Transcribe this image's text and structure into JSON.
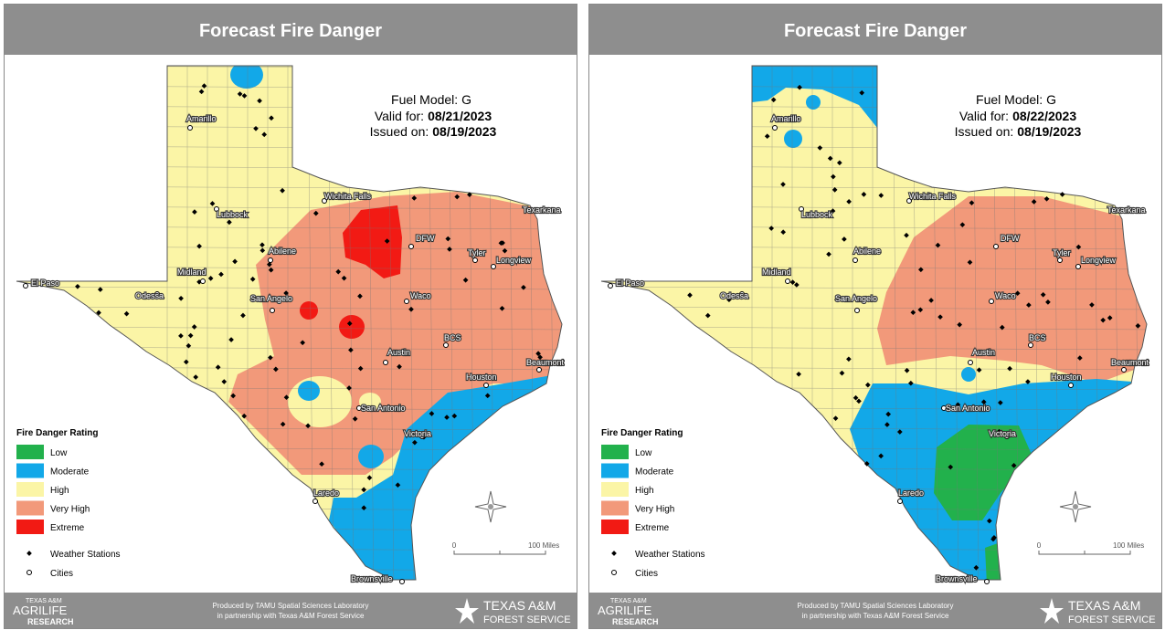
{
  "panels": [
    {
      "title": "Forecast Fire Danger",
      "fuel_model": "Fuel Model: G",
      "valid_label": "Valid for:",
      "valid_date": "08/21/2023",
      "issued_label": "Issued on:",
      "issued_date": "08/19/2023",
      "cities": [
        "El Paso",
        "Odessa",
        "Midland",
        "Lubbock",
        "Amarillo",
        "Wichita Falls",
        "Abilene",
        "San Angelo",
        "DFW",
        "Tyler",
        "Longview",
        "Texarkana",
        "Waco",
        "Austin",
        "BCS",
        "Houston",
        "Beaumont",
        "San Antonio",
        "Victoria",
        "Laredo",
        "Brownsville"
      ],
      "legend": {
        "title": "Fire Danger Rating",
        "items": [
          {
            "label": "Low",
            "color": "#22b14c"
          },
          {
            "label": "Moderate",
            "color": "#12a8e8"
          },
          {
            "label": "High",
            "color": "#fbf5a6"
          },
          {
            "label": "Very High",
            "color": "#f2997a"
          },
          {
            "label": "Extreme",
            "color": "#f21a14"
          }
        ],
        "stations": "Weather Stations",
        "cities": "Cities"
      },
      "scale": {
        "start": "0",
        "end": "100 Miles"
      },
      "footer": {
        "line1": "Produced by TAMU Spatial Sciences Laboratory",
        "line2": "in partnership with Texas A&M Forest Service",
        "left_logo": [
          "TEXAS A&M",
          "AGRILIFE",
          "RESEARCH"
        ],
        "right_logo": [
          "TEXAS A&M",
          "FOREST SERVICE"
        ]
      }
    },
    {
      "title": "Forecast Fire Danger",
      "fuel_model": "Fuel Model: G",
      "valid_label": "Valid for:",
      "valid_date": "08/22/2023",
      "issued_label": "Issued on:",
      "issued_date": "08/19/2023",
      "cities": [
        "El Paso",
        "Odessa",
        "Midland",
        "Lubbock",
        "Amarillo",
        "Wichita Falls",
        "Abilene",
        "San Angelo",
        "DFW",
        "Tyler",
        "Longview",
        "Texarkana",
        "Waco",
        "Austin",
        "BCS",
        "Houston",
        "Beaumont",
        "San Antonio",
        "Victoria",
        "Laredo",
        "Brownsville"
      ],
      "legend": {
        "title": "Fire Danger Rating",
        "items": [
          {
            "label": "Low",
            "color": "#22b14c"
          },
          {
            "label": "Moderate",
            "color": "#12a8e8"
          },
          {
            "label": "High",
            "color": "#fbf5a6"
          },
          {
            "label": "Very High",
            "color": "#f2997a"
          },
          {
            "label": "Extreme",
            "color": "#f21a14"
          }
        ],
        "stations": "Weather Stations",
        "cities": "Cities"
      },
      "scale": {
        "start": "0",
        "end": "100 Miles"
      },
      "footer": {
        "line1": "Produced by TAMU Spatial Sciences Laboratory",
        "line2": "in partnership with Texas A&M Forest Service",
        "left_logo": [
          "TEXAS A&M",
          "AGRILIFE",
          "RESEARCH"
        ],
        "right_logo": [
          "TEXAS A&M",
          "FOREST SERVICE"
        ]
      }
    }
  ]
}
